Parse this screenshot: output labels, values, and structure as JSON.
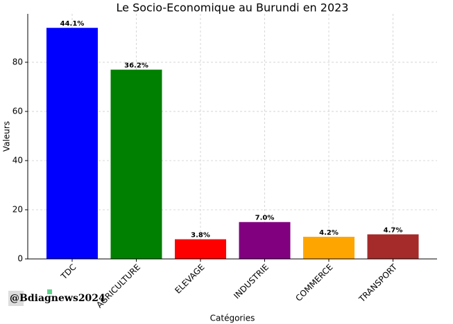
{
  "chart_data": {
    "type": "bar",
    "title": "Le Socio-Economique au Burundi en 2023",
    "x_label": "Catégories",
    "y_label": "Valeurs",
    "categories": [
      "TDC",
      "AGRICULTURE",
      "ELEVAGE",
      "INDUSTRIE",
      "COMMERCE",
      "TRANSPORT"
    ],
    "values": [
      94,
      77,
      8,
      15,
      9,
      10
    ],
    "value_labels": [
      "44.1%",
      "36.2%",
      "3.8%",
      "7.0%",
      "4.2%",
      "4.7%"
    ],
    "colors": [
      "#0000ff",
      "#008000",
      "#ff0000",
      "#800080",
      "#ffa500",
      "#a52a2a"
    ],
    "ylim": [
      0,
      99.7
    ],
    "yticks": [
      0,
      20,
      40,
      60,
      80
    ],
    "grid": true,
    "watermark": "@Bdiagnews2024"
  }
}
